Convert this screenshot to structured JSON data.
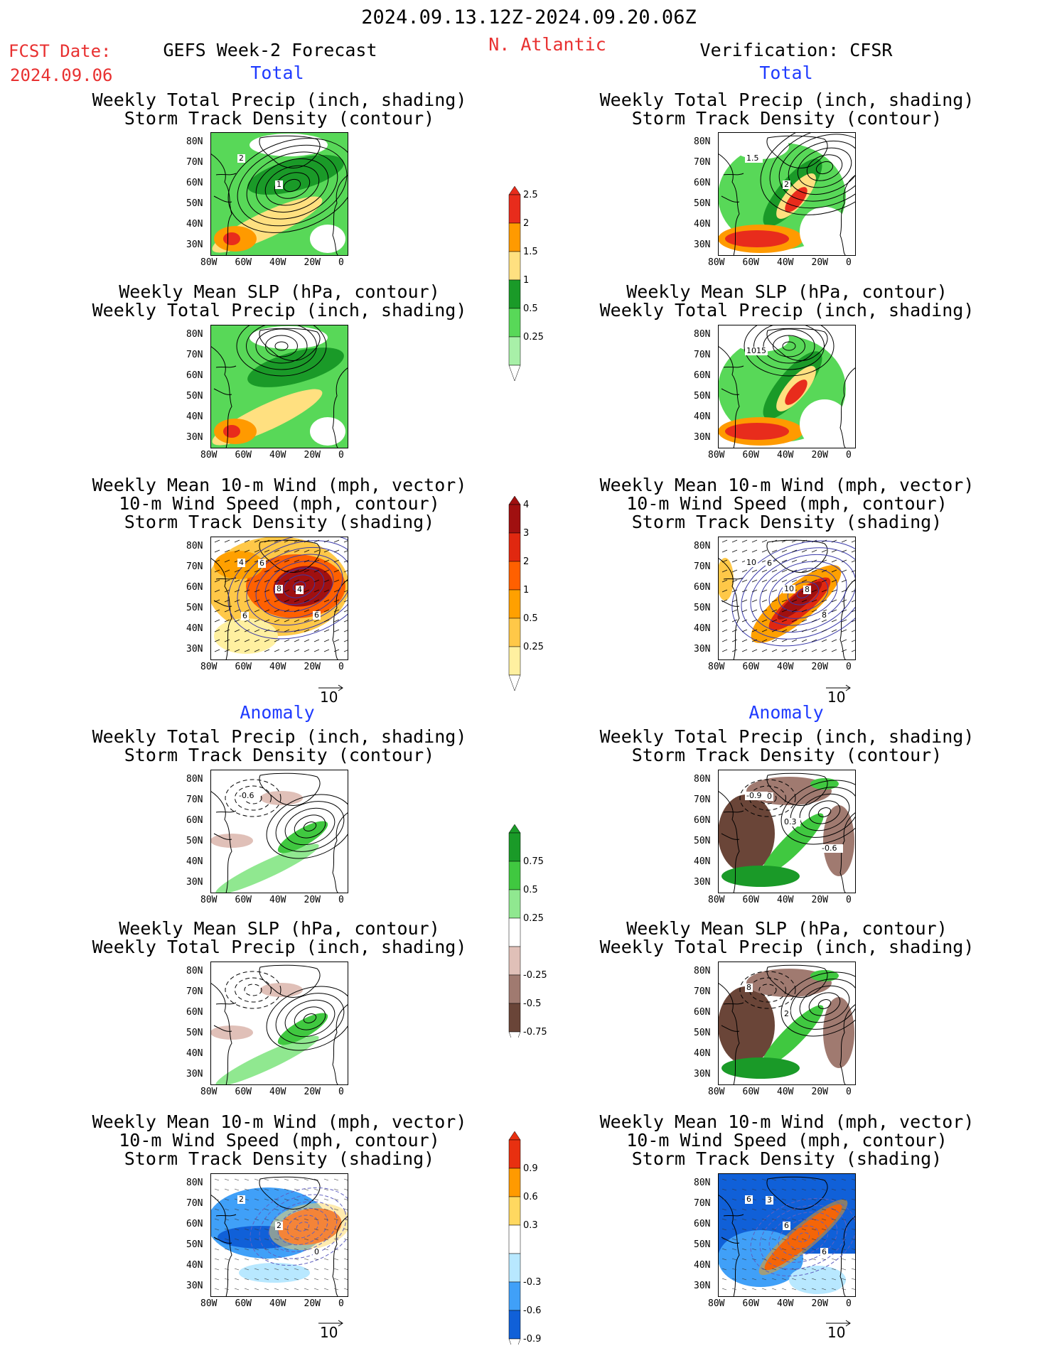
{
  "header": {
    "date_range": "2024.09.13.12Z-2024.09.20.06Z",
    "fcst_label": "FCST Date:",
    "fcst_date": "2024.09.06",
    "left_title": "GEFS Week-2 Forecast",
    "region": "N. Atlantic",
    "right_title": "Verification: CFSR"
  },
  "sections": {
    "total": "Total",
    "anomaly": "Anomaly"
  },
  "panel_titles": {
    "precip_track": [
      "Weekly Total Precip (inch, shading)",
      "Storm Track Density (contour)"
    ],
    "slp_precip": [
      "Weekly Mean SLP (hPa, contour)",
      "Weekly Total Precip (inch, shading)"
    ],
    "wind_track": [
      "Weekly Mean 10-m Wind (mph, vector)",
      "10-m Wind Speed (mph, contour)",
      "Storm Track Density (shading)"
    ]
  },
  "axes": {
    "lat_ticks": [
      "80N",
      "70N",
      "60N",
      "50N",
      "40N",
      "30N"
    ],
    "lon_ticks": [
      "80W",
      "60W",
      "40W",
      "20W",
      "0"
    ]
  },
  "vector_ref": "10",
  "colorbars": {
    "precip_total": {
      "labels": [
        "2.5",
        "2",
        "1.5",
        "1",
        "0.5",
        "0.25"
      ],
      "colors": [
        "#e82c1c",
        "#ff9a00",
        "#ffe080",
        "#1a9a28",
        "#58d858",
        "#a8f0a8"
      ]
    },
    "track_total": {
      "labels": [
        "4",
        "3",
        "2",
        "1",
        "0.5",
        "0.25"
      ],
      "colors": [
        "#a01010",
        "#e02810",
        "#ff6000",
        "#ffa000",
        "#ffc848",
        "#fff0a0"
      ]
    },
    "precip_anom": {
      "labels": [
        "0.75",
        "0.5",
        "0.25",
        "-0.25",
        "-0.5",
        "-0.75"
      ],
      "colors": [
        "#1a9a28",
        "#40c840",
        "#90e890",
        "#ffffff",
        "#e0c0b8",
        "#a07a70",
        "#6a4538"
      ]
    },
    "track_anom": {
      "labels": [
        "0.9",
        "0.6",
        "0.3",
        "-0.3",
        "-0.6",
        "-0.9"
      ],
      "colors": [
        "#e83010",
        "#ff9a00",
        "#ffd860",
        "#ffffff",
        "#b8e8ff",
        "#40a0f8",
        "#1060d8"
      ]
    }
  },
  "contour_labels": {
    "l_precip_total": [
      "2",
      "1"
    ],
    "r_precip_total": [
      "1.5",
      "2"
    ],
    "r_slp_total": [
      "1015"
    ],
    "l_wind_total": [
      "4",
      "8",
      "6",
      "6",
      "4",
      "6"
    ],
    "r_wind_total": [
      "10",
      "10",
      "8",
      "6",
      "8"
    ],
    "l_precip_anom": [
      "-0.6"
    ],
    "r_precip_anom": [
      "-0.9",
      "0.3",
      "-0.6",
      "0"
    ],
    "r_slp_anom": [
      "8",
      "2"
    ],
    "l_wind_anom": [
      "2",
      "2",
      "0"
    ],
    "r_wind_anom": [
      "6",
      "6",
      "6",
      "3"
    ]
  }
}
